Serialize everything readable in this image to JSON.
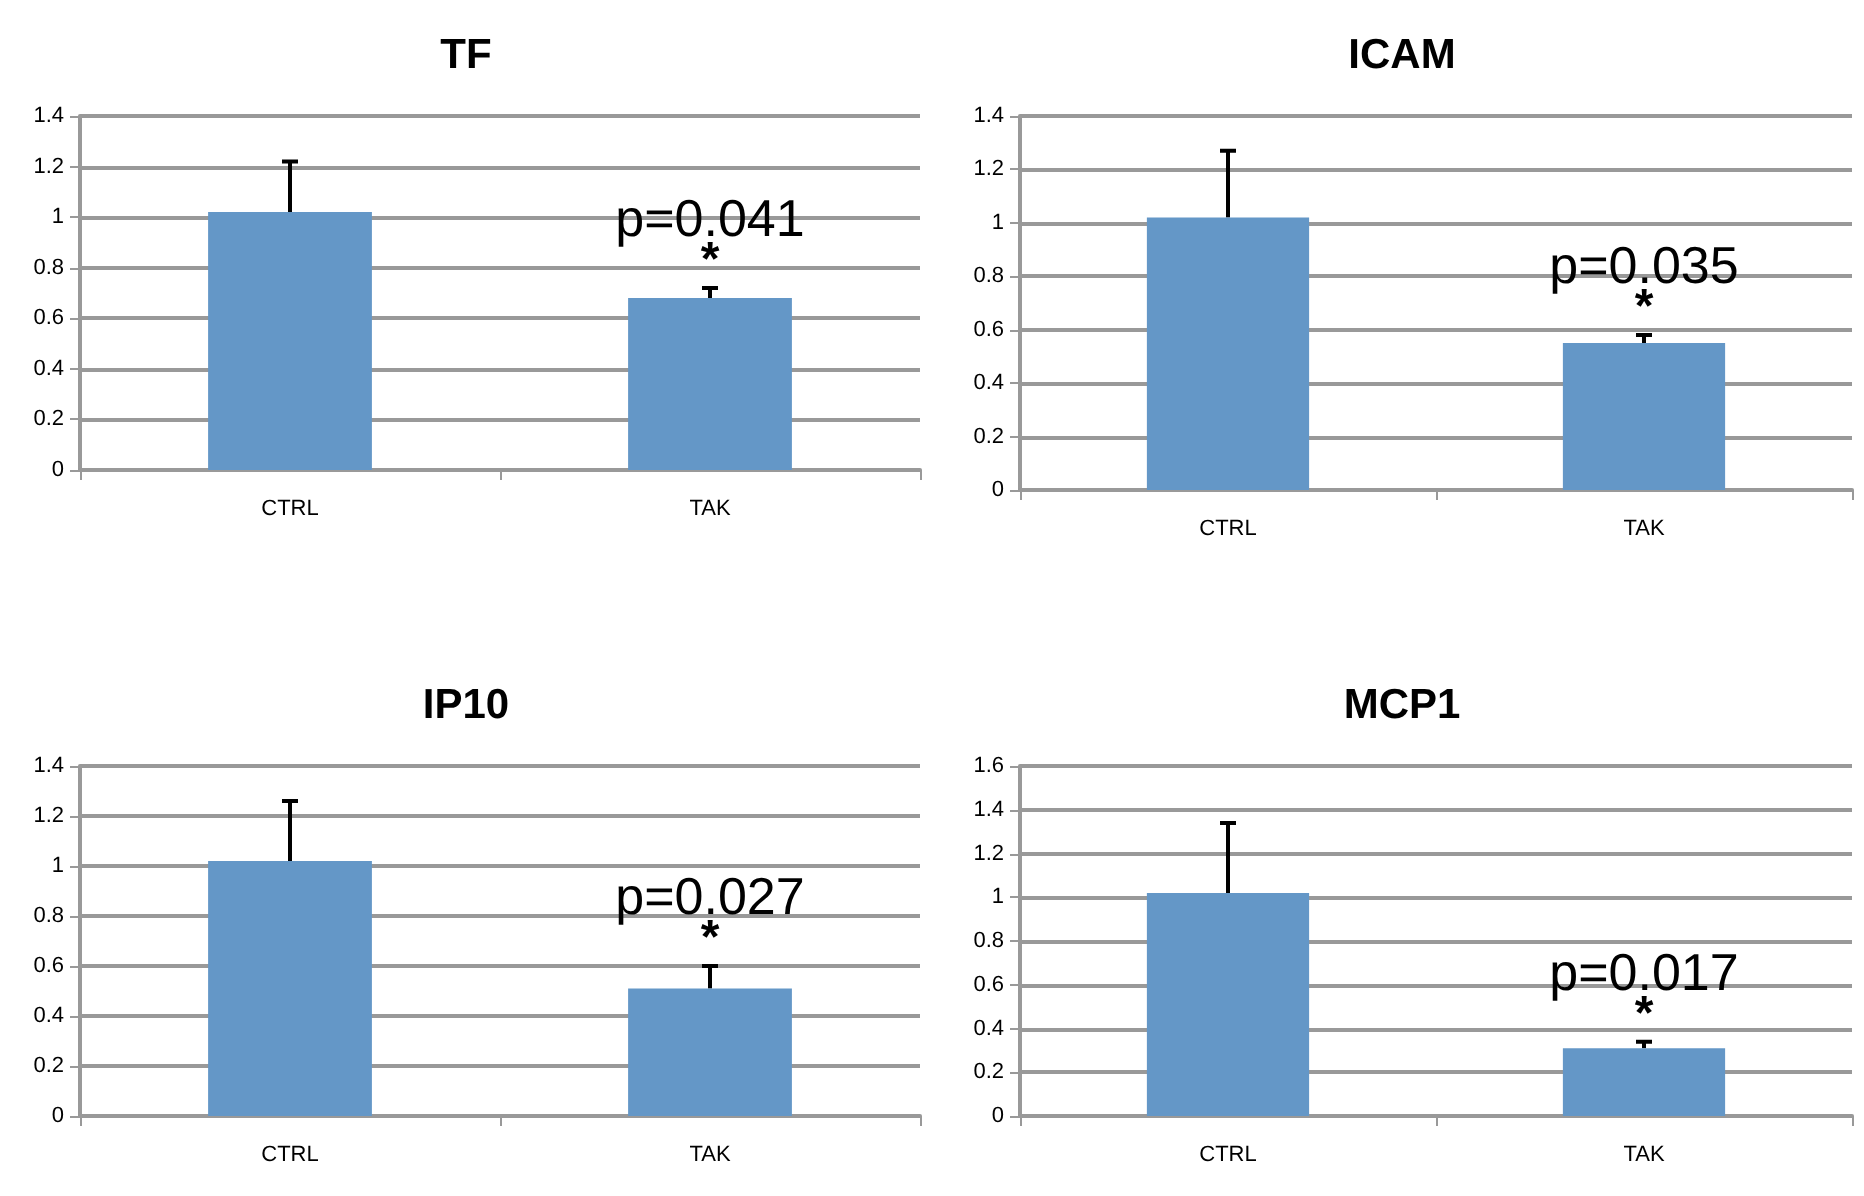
{
  "chart_data": [
    {
      "type": "bar",
      "title": "TF",
      "categories": [
        "CTRL",
        "TAK"
      ],
      "values": [
        1.02,
        0.68
      ],
      "errors": [
        [
          1.02,
          1.22
        ],
        [
          0.68,
          0.72
        ]
      ],
      "color": "#6497c7",
      "ylim": [
        0,
        1.4
      ],
      "yticks": [
        0,
        0.2,
        0.4,
        0.6,
        0.8,
        1,
        1.2,
        1.4
      ],
      "grid": "y",
      "annotations": [
        "p=0.041",
        "*"
      ]
    },
    {
      "type": "bar",
      "title": "ICAM",
      "categories": [
        "CTRL",
        "TAK"
      ],
      "values": [
        1.02,
        0.55
      ],
      "errors": [
        [
          1.02,
          1.27
        ],
        [
          0.55,
          0.58
        ]
      ],
      "color": "#6497c7",
      "ylim": [
        0,
        1.4
      ],
      "yticks": [
        0,
        0.2,
        0.4,
        0.6,
        0.8,
        1,
        1.2,
        1.4
      ],
      "grid": "y",
      "annotations": [
        "p=0.035",
        "*"
      ]
    },
    {
      "type": "bar",
      "title": "IP10",
      "categories": [
        "CTRL",
        "TAK"
      ],
      "values": [
        1.02,
        0.51
      ],
      "errors": [
        [
          1.02,
          1.26
        ],
        [
          0.51,
          0.6
        ]
      ],
      "color": "#6497c7",
      "ylim": [
        0,
        1.4
      ],
      "yticks": [
        0,
        0.2,
        0.4,
        0.6,
        0.8,
        1,
        1.2,
        1.4
      ],
      "grid": "y",
      "annotations": [
        "p=0.027",
        "*"
      ]
    },
    {
      "type": "bar",
      "title": "MCP1",
      "categories": [
        "CTRL",
        "TAK"
      ],
      "values": [
        1.02,
        0.31
      ],
      "errors": [
        [
          1.02,
          1.34
        ],
        [
          0.31,
          0.34
        ]
      ],
      "color": "#6497c7",
      "ylim": [
        0,
        1.6
      ],
      "yticks": [
        0,
        0.2,
        0.4,
        0.6,
        0.8,
        1,
        1.2,
        1.4,
        1.6
      ],
      "grid": "y",
      "annotations": [
        "p=0.017",
        "*"
      ]
    }
  ]
}
